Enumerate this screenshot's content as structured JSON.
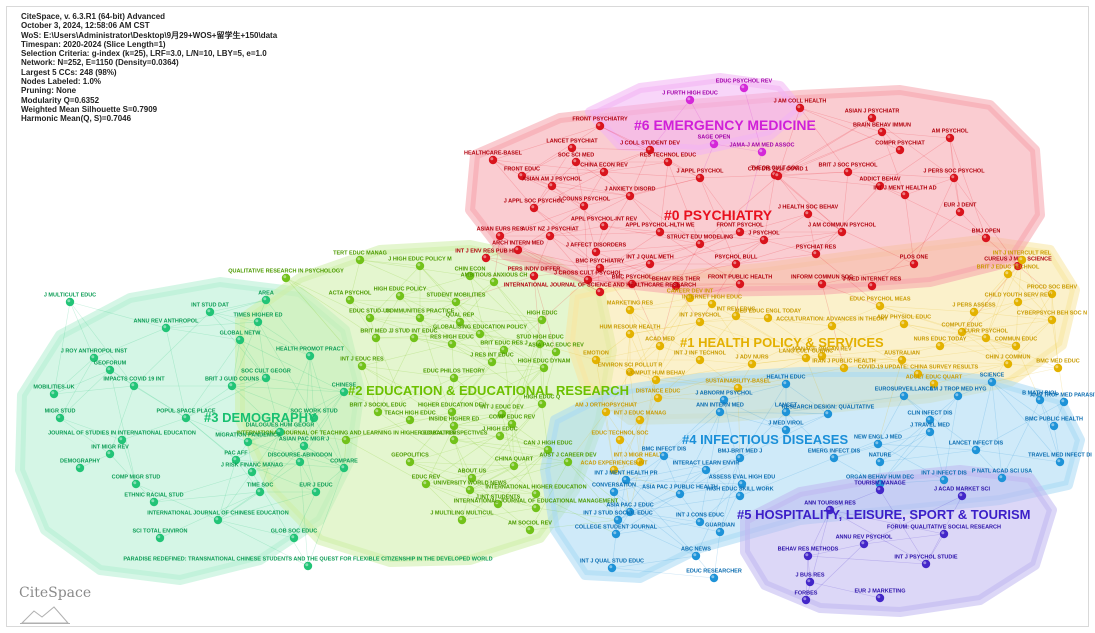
{
  "info": {
    "lines": [
      "CiteSpace, v. 6.3.R1 (64-bit) Advanced",
      "October 3, 2024, 12:58:06 AM CST",
      "WoS: E:\\Users\\Administrator\\Desktop\\9月29+WOS+留学生+150\\data",
      "Timespan: 2020-2024 (Slice Length=1)",
      "Selection Criteria: g-index (k=25), LRF=3.0, L/N=10, LBY=5, e=1.0",
      "Network: N=252, E=1150 (Density=0.0364)",
      "Largest 5 CCs: 248 (98%)",
      "Nodes Labeled: 1.0%",
      "Pruning: None",
      "Modularity Q=0.6352",
      "Weighted Mean Silhouette S=0.7909",
      "Harmonic Mean(Q, S)=0.7046"
    ]
  },
  "logo": {
    "text": "CiteSpace"
  },
  "clusters": [
    {
      "id": 0,
      "label": "#0 PSYCHIATRY",
      "color": "#e8101e",
      "hull": "#f6a3ab",
      "node": "#d9141d",
      "text": "#b0000c"
    },
    {
      "id": 1,
      "label": "#1 HEALTH POLICY & SERVICES",
      "color": "#e3b000",
      "hull": "#f8e6a0",
      "node": "#e3b200",
      "text": "#c89a00"
    },
    {
      "id": 2,
      "label": "#2 EDUCATION & EDUCATIONAL RESEARCH",
      "color": "#6cc000",
      "hull": "#cdeea8",
      "node": "#72c21a",
      "text": "#4c9a00"
    },
    {
      "id": 3,
      "label": "#3 DEMOGRAPHY",
      "color": "#18c070",
      "hull": "#b3efd2",
      "node": "#22c477",
      "text": "#0c9c55"
    },
    {
      "id": 4,
      "label": "#4 INFECTIOUS DISEASES",
      "color": "#1a8fd8",
      "hull": "#a8d8f4",
      "node": "#1e93d8",
      "text": "#0a6cb0"
    },
    {
      "id": 5,
      "label": "#5 HOSPITALITY, LEISURE, SPORT & TOURISM",
      "color": "#3b1fc8",
      "hull": "#c0b6f0",
      "node": "#4327c8",
      "text": "#2a10a8"
    },
    {
      "id": 6,
      "label": "#6 EMERGENCY MEDICINE",
      "color": "#d020d8",
      "hull": "#f2b2f4",
      "node": "#d428d8",
      "text": "#a000a8"
    }
  ],
  "nodes": [
    {
      "c": 6,
      "label": "EDUC PSYCHOL REV"
    },
    {
      "c": 6,
      "label": "J FURTH HIGH EDUC"
    },
    {
      "c": 6,
      "label": "SAGE OPEN"
    },
    {
      "c": 6,
      "label": "JAMA-J AM MED ASSOC"
    },
    {
      "c": 0,
      "label": "J AM COLL HEALTH"
    },
    {
      "c": 0,
      "label": "ASIAN J PSYCHIATR"
    },
    {
      "c": 0,
      "label": "FRONT PSYCHIATRY"
    },
    {
      "c": 0,
      "label": "BRAIN BEHAV IMMUN"
    },
    {
      "c": 0,
      "label": "AM PSYCHOL"
    },
    {
      "c": 0,
      "label": "LANCET PSYCHIAT"
    },
    {
      "c": 0,
      "label": "J COLL STUDENT DEV"
    },
    {
      "c": 0,
      "label": "COMPR PSYCHIAT"
    },
    {
      "c": 0,
      "label": "HEALTHCARE-BASEL"
    },
    {
      "c": 0,
      "label": "SOC SCI MED"
    },
    {
      "c": 0,
      "label": "RES TECHNOL EDUC"
    },
    {
      "c": 0,
      "label": "THEOR CULT SOC"
    },
    {
      "c": 0,
      "label": "BRIT J SOC PSYCHOL"
    },
    {
      "c": 0,
      "label": "J PERS SOC PSYCHOL"
    },
    {
      "c": 0,
      "label": "FRONT EDUC"
    },
    {
      "c": 0,
      "label": "CHINA ECON REV"
    },
    {
      "c": 0,
      "label": "J APPL PSYCHOL"
    },
    {
      "c": 0,
      "label": "COR DIS 2019 COVID 1"
    },
    {
      "c": 0,
      "label": "ASIAN AM J PSYCHOL"
    },
    {
      "c": 0,
      "label": "ADDICT BEHAV"
    },
    {
      "c": 0,
      "label": "INT J MENT HEALTH AD"
    },
    {
      "c": 0,
      "label": "J APPL SOC PSYCHOL"
    },
    {
      "c": 0,
      "label": "J COUNS PSYCHOL"
    },
    {
      "c": 0,
      "label": "J ANXIETY DISORD"
    },
    {
      "c": 0,
      "label": "J HEALTH SOC BEHAV"
    },
    {
      "c": 0,
      "label": "EUR J DENT"
    },
    {
      "c": 0,
      "label": "INT J ENV RES PUB HE"
    },
    {
      "c": 0,
      "label": "APPL PSYCHOL-INT REV"
    },
    {
      "c": 0,
      "label": "ASIAN EURS RES"
    },
    {
      "c": 0,
      "label": "AUST NZ J PSYCHIAT"
    },
    {
      "c": 0,
      "label": "APPL PSYCHOL-HLTH WE"
    },
    {
      "c": 0,
      "label": "FRONT PSYCHOL"
    },
    {
      "c": 0,
      "label": "J AM COMMUN PSYCHOL"
    },
    {
      "c": 0,
      "label": "ARCH INTERN MED"
    },
    {
      "c": 0,
      "label": "J AFFECT DISORDERS"
    },
    {
      "c": 0,
      "label": "STRUCT EDU MODELING"
    },
    {
      "c": 0,
      "label": "J PSYCHOL"
    },
    {
      "c": 0,
      "label": "PSYCHIAT RES"
    },
    {
      "c": 0,
      "label": "BMJ OPEN"
    },
    {
      "c": 0,
      "label": "BMC PSYCHIATRY"
    },
    {
      "c": 0,
      "label": "INT J QUAL METH"
    },
    {
      "c": 0,
      "label": "PSYCHOL BULL"
    },
    {
      "c": 0,
      "label": "PLOS ONE"
    },
    {
      "c": 0,
      "label": "CUREUS J MED SCIENCE"
    },
    {
      "c": 0,
      "label": "PERS INDIV DIFFER"
    },
    {
      "c": 0,
      "label": "J CROSS CULT PSYCHOL"
    },
    {
      "c": 0,
      "label": "BMC PSYCHOL"
    },
    {
      "c": 0,
      "label": "BEHAV RES THER"
    },
    {
      "c": 0,
      "label": "FRONT PUBLIC HEALTH"
    },
    {
      "c": 0,
      "label": "INFORM COMMUN SOC"
    },
    {
      "c": 0,
      "label": "J MED INTERNET RES"
    },
    {
      "c": 0,
      "label": "INTERNATIONAL JOURNAL OF SCIENCE AND HEALTHCARE RESEARCH"
    },
    {
      "c": 1,
      "label": "INT J INTERCULT REL"
    },
    {
      "c": 1,
      "label": "BRIT J EDUC TECHNOL"
    },
    {
      "c": 1,
      "label": "PROCD SOC BEHV"
    },
    {
      "c": 1,
      "label": "CHILD YOUTH SERV REV"
    },
    {
      "c": 1,
      "label": "J PERS ASSESS"
    },
    {
      "c": 1,
      "label": "CYBERPSYCH BEH SOC N"
    },
    {
      "c": 1,
      "label": "CAREER DEV INT"
    },
    {
      "c": 1,
      "label": "INTERNET HIGH EDUC"
    },
    {
      "c": 1,
      "label": "EDUC PSYCHOL MEAS"
    },
    {
      "c": 1,
      "label": "MARKETING RES"
    },
    {
      "c": 1,
      "label": "MED EDUC ENGL TODAY"
    },
    {
      "c": 1,
      "label": "ADV PHYSIOL EDUC"
    },
    {
      "c": 1,
      "label": "COMPUT EDUC"
    },
    {
      "c": 1,
      "label": "CURR PSYCHOL"
    },
    {
      "c": 1,
      "label": "INT J PSYCHOL"
    },
    {
      "c": 1,
      "label": "INT REV EDUC"
    },
    {
      "c": 1,
      "label": "ACCULTURATION: ADVANCES IN THEORY"
    },
    {
      "c": 1,
      "label": "NURS EDUC TODAY"
    },
    {
      "c": 1,
      "label": "COMMUN EDUC"
    },
    {
      "c": 1,
      "label": "HUM RESOUR HEALTH"
    },
    {
      "c": 1,
      "label": "ACAD MED"
    },
    {
      "c": 1,
      "label": "INT J INF TECHNOL"
    },
    {
      "c": 1,
      "label": "MANAGE ORGAN REV"
    },
    {
      "c": 1,
      "label": "CHIN J COMMUN"
    },
    {
      "c": 1,
      "label": "BMC MED EDUC"
    },
    {
      "c": 1,
      "label": "LANG CULT CURRIC"
    },
    {
      "c": 1,
      "label": "J ADV NURS"
    },
    {
      "c": 1,
      "label": "AUSTRALIAN"
    },
    {
      "c": 1,
      "label": "EMOTION"
    },
    {
      "c": 1,
      "label": "IRAN J PUBLIC HEALTH"
    },
    {
      "c": 1,
      "label": "COVID-19 UPDATE: CHINA SURVEY RESULTS"
    },
    {
      "c": 1,
      "label": "ENVIRON SCI POLLUT R"
    },
    {
      "c": 1,
      "label": "ADULT EDUC QUART"
    },
    {
      "c": 1,
      "label": "COMPUT HUM BEHAV"
    },
    {
      "c": 1,
      "label": "SUSTAINABILITY-BASEL"
    },
    {
      "c": 1,
      "label": "DISTANCE EDUC"
    },
    {
      "c": 1,
      "label": "AM J ORTHOPSYCHIAT"
    },
    {
      "c": 1,
      "label": "INT J EDUC MANAG"
    },
    {
      "c": 1,
      "label": "EDUC TECHNOL SOC"
    },
    {
      "c": 1,
      "label": "INT J MIGR HEALTH"
    },
    {
      "c": 1,
      "label": "ACAD EXPERIENCES INT"
    },
    {
      "c": 2,
      "label": "TERT EDUC MANAG"
    },
    {
      "c": 2,
      "label": "J HIGH EDUC POLICY M"
    },
    {
      "c": 2,
      "label": "QUALITATIVE RESEARCH IN PSYCHOLOGY"
    },
    {
      "c": 2,
      "label": "CHIN ECON"
    },
    {
      "c": 2,
      "label": "AMBITIOUS ANXIOUS CH"
    },
    {
      "c": 2,
      "label": "ACTA PSYCHOL"
    },
    {
      "c": 2,
      "label": "HIGH EDUC POLICY"
    },
    {
      "c": 2,
      "label": "STUDENT MOBILITIES"
    },
    {
      "c": 2,
      "label": "EDUC STUD-UK"
    },
    {
      "c": 2,
      "label": "COMMUNITIES PRACTICE"
    },
    {
      "c": 2,
      "label": "QUAL REP"
    },
    {
      "c": 2,
      "label": "BRIT MED J"
    },
    {
      "c": 2,
      "label": "J STUD INT EDUC"
    },
    {
      "c": 2,
      "label": "GLOBALISING EDUCATION POLICY"
    },
    {
      "c": 2,
      "label": "HIGH EDUC"
    },
    {
      "c": 2,
      "label": "RES HIGH EDUC"
    },
    {
      "c": 2,
      "label": "STUD HIGH EDUC"
    },
    {
      "c": 2,
      "label": "BRIT EDUC RES J"
    },
    {
      "c": 2,
      "label": "ASIA PAC EDUC REV"
    },
    {
      "c": 2,
      "label": "INT J EDUC RES"
    },
    {
      "c": 2,
      "label": "J RES INT EDUC"
    },
    {
      "c": 2,
      "label": "HIGH EDUC DYNAM"
    },
    {
      "c": 2,
      "label": "EDUC PHILOS THEORY"
    },
    {
      "c": 2,
      "label": "BRIT J SOCIOL EDUC"
    },
    {
      "c": 2,
      "label": "HIGHER EDUCATION DEV"
    },
    {
      "c": 2,
      "label": "INT J EDUC DEV"
    },
    {
      "c": 2,
      "label": "HIGH EDUC Q"
    },
    {
      "c": 2,
      "label": "TEACH HIGH EDUC"
    },
    {
      "c": 2,
      "label": "INSIDE HIGHER ED"
    },
    {
      "c": 2,
      "label": "COMP EDUC REV"
    },
    {
      "c": 2,
      "label": "J HIGH EDUC"
    },
    {
      "c": 2,
      "label": "INTERNATIONAL JOURNAL OF TEACHING AND LEARNING IN HIGHER EDUCATION"
    },
    {
      "c": 2,
      "label": "GLOBAL PERSPECTIVES"
    },
    {
      "c": 2,
      "label": "CAN J HIGH EDUC"
    },
    {
      "c": 2,
      "label": "GEOPOLITICS"
    },
    {
      "c": 2,
      "label": "CHINA QUART"
    },
    {
      "c": 2,
      "label": "ABOUT US"
    },
    {
      "c": 2,
      "label": "AUST J CAREER DEV"
    },
    {
      "c": 2,
      "label": "EDUC REV"
    },
    {
      "c": 2,
      "label": "UNIVERSITY WORLD NEWS"
    },
    {
      "c": 2,
      "label": "INTERNATIONAL HIGHER EDUCATION"
    },
    {
      "c": 2,
      "label": "J INT STUDENTS"
    },
    {
      "c": 2,
      "label": "INTERNATIONAL JOURNAL OF EDUCATIONAL MANAGEMENT"
    },
    {
      "c": 2,
      "label": "J MULTILING MULTICUL"
    },
    {
      "c": 2,
      "label": "AM SOCIOL REV"
    },
    {
      "c": 3,
      "label": "J MULTICULT EDUC"
    },
    {
      "c": 3,
      "label": "AREA"
    },
    {
      "c": 3,
      "label": "INT STUD DAT"
    },
    {
      "c": 3,
      "label": "TIMES HIGHER ED"
    },
    {
      "c": 3,
      "label": "ANNU REV ANTHROPOL"
    },
    {
      "c": 3,
      "label": "GLOBAL NETW"
    },
    {
      "c": 3,
      "label": "J ROY ANTHROPOL INST"
    },
    {
      "c": 3,
      "label": "HEALTH PROMOT PRACT"
    },
    {
      "c": 3,
      "label": "GEOFORUM"
    },
    {
      "c": 3,
      "label": "SOC CULT GEOGR"
    },
    {
      "c": 3,
      "label": "IMPACTS COVID 19 INT"
    },
    {
      "c": 3,
      "label": "BRIT J GUID COUNS"
    },
    {
      "c": 3,
      "label": "MOBILITIES-UK"
    },
    {
      "c": 3,
      "label": "CHINESE"
    },
    {
      "c": 3,
      "label": "MIGR STUD"
    },
    {
      "c": 3,
      "label": "POPUL SPACE PLACE"
    },
    {
      "c": 3,
      "label": "SOC WORK STUD"
    },
    {
      "c": 3,
      "label": "DIALOGUES HUM GEOGR"
    },
    {
      "c": 3,
      "label": "JOURNAL OF STUDIES IN INTERNATIONAL EDUCATION"
    },
    {
      "c": 3,
      "label": "MIGRATION PANDEMICS"
    },
    {
      "c": 3,
      "label": "ASIAN PAC MIGR J"
    },
    {
      "c": 3,
      "label": "INT MIGR REV"
    },
    {
      "c": 3,
      "label": "DEMOGRAPHY"
    },
    {
      "c": 3,
      "label": "PAC AFF"
    },
    {
      "c": 3,
      "label": "DISCOURSE-ABINGDON"
    },
    {
      "c": 3,
      "label": "COMPARE"
    },
    {
      "c": 3,
      "label": "J RISK FINANC MANAG"
    },
    {
      "c": 3,
      "label": "COMP MIGR STUD"
    },
    {
      "c": 3,
      "label": "TIME SOC"
    },
    {
      "c": 3,
      "label": "EUR J EDUC"
    },
    {
      "c": 3,
      "label": "ETHNIC RACIAL STUD"
    },
    {
      "c": 3,
      "label": "INTERNATIONAL JOURNAL OF CHINESE EDUCATION"
    },
    {
      "c": 3,
      "label": "SCI TOTAL ENVIRON"
    },
    {
      "c": 3,
      "label": "GLOB SOC EDUC"
    },
    {
      "c": 3,
      "label": "PARADISE REDEFINED: TRANSNATIONAL CHINESE STUDENTS AND THE QUEST FOR FLEXIBLE CITIZENSHIP IN THE DEVELOPED WORLD"
    },
    {
      "c": 4,
      "label": "AM J TROP MED HYG"
    },
    {
      "c": 4,
      "label": "ANN TROP MED PARASIT"
    },
    {
      "c": 4,
      "label": "SCIENCE"
    },
    {
      "c": 4,
      "label": "HEALTH EDUC"
    },
    {
      "c": 4,
      "label": "EUROSURVEILLANCE"
    },
    {
      "c": 4,
      "label": "LANCET"
    },
    {
      "c": 4,
      "label": "J ABNORM PSYCHOL"
    },
    {
      "c": 4,
      "label": "RESEARCH DESIGN: QUALITATIVE"
    },
    {
      "c": 4,
      "label": "B MATH BIOL"
    },
    {
      "c": 4,
      "label": "ANN INTERN MED"
    },
    {
      "c": 4,
      "label": "J MED VIROL"
    },
    {
      "c": 4,
      "label": "CLIN INFECT DIS"
    },
    {
      "c": 4,
      "label": "BMC PUBLIC HEALTH"
    },
    {
      "c": 4,
      "label": "J TRAVEL MED"
    },
    {
      "c": 4,
      "label": "NEW ENGL J MED"
    },
    {
      "c": 4,
      "label": "LANCET INFECT DIS"
    },
    {
      "c": 4,
      "label": "BMC INFECT DIS"
    },
    {
      "c": 4,
      "label": "BMJ-BRIT MED J"
    },
    {
      "c": 4,
      "label": "EMERG INFECT DIS"
    },
    {
      "c": 4,
      "label": "NATURE"
    },
    {
      "c": 4,
      "label": "TRAVEL MED INFECT DI"
    },
    {
      "c": 4,
      "label": "INTERACT LEARN ENVIR"
    },
    {
      "c": 4,
      "label": "INT J MENT HEALTH PR"
    },
    {
      "c": 4,
      "label": "ASSESS EVAL HIGH EDU"
    },
    {
      "c": 4,
      "label": "INT J INFECT DIS"
    },
    {
      "c": 4,
      "label": "ORGAN BEHAV HUM DEC"
    },
    {
      "c": 4,
      "label": "P NATL ACAD SCI USA"
    },
    {
      "c": 4,
      "label": "CONVERSATION"
    },
    {
      "c": 4,
      "label": "HIGH EDUC SKILL WORK"
    },
    {
      "c": 4,
      "label": "ASIA PAC J PUBLIC HEALTH"
    },
    {
      "c": 4,
      "label": "ASIA PAC J EDUC"
    },
    {
      "c": 4,
      "label": "INT J STUD SOCIOL EDUC"
    },
    {
      "c": 4,
      "label": "INT J CONS EDUC"
    },
    {
      "c": 4,
      "label": "COLLEGE STUDENT JOURNAL"
    },
    {
      "c": 4,
      "label": "GUARDIAN"
    },
    {
      "c": 4,
      "label": "ABC NEWS"
    },
    {
      "c": 4,
      "label": "INT J QUAL STUD EDUC"
    },
    {
      "c": 4,
      "label": "EDUC RESEARCHER"
    },
    {
      "c": 5,
      "label": "TOURISM MANAGE"
    },
    {
      "c": 5,
      "label": "J ACAD MARKET SCI"
    },
    {
      "c": 5,
      "label": "ANN TOURISM RES"
    },
    {
      "c": 5,
      "label": "FORUM: QUALITATIVE SOCIAL RESEARCH"
    },
    {
      "c": 5,
      "label": "ANNU REV PSYCHOL"
    },
    {
      "c": 5,
      "label": "BEHAV RES METHODS"
    },
    {
      "c": 5,
      "label": "INT J PSYCHOL STUDIE"
    },
    {
      "c": 5,
      "label": "J BUS RES"
    },
    {
      "c": 5,
      "label": "FORBES"
    },
    {
      "c": 5,
      "label": "EUR J MARKETING"
    }
  ]
}
